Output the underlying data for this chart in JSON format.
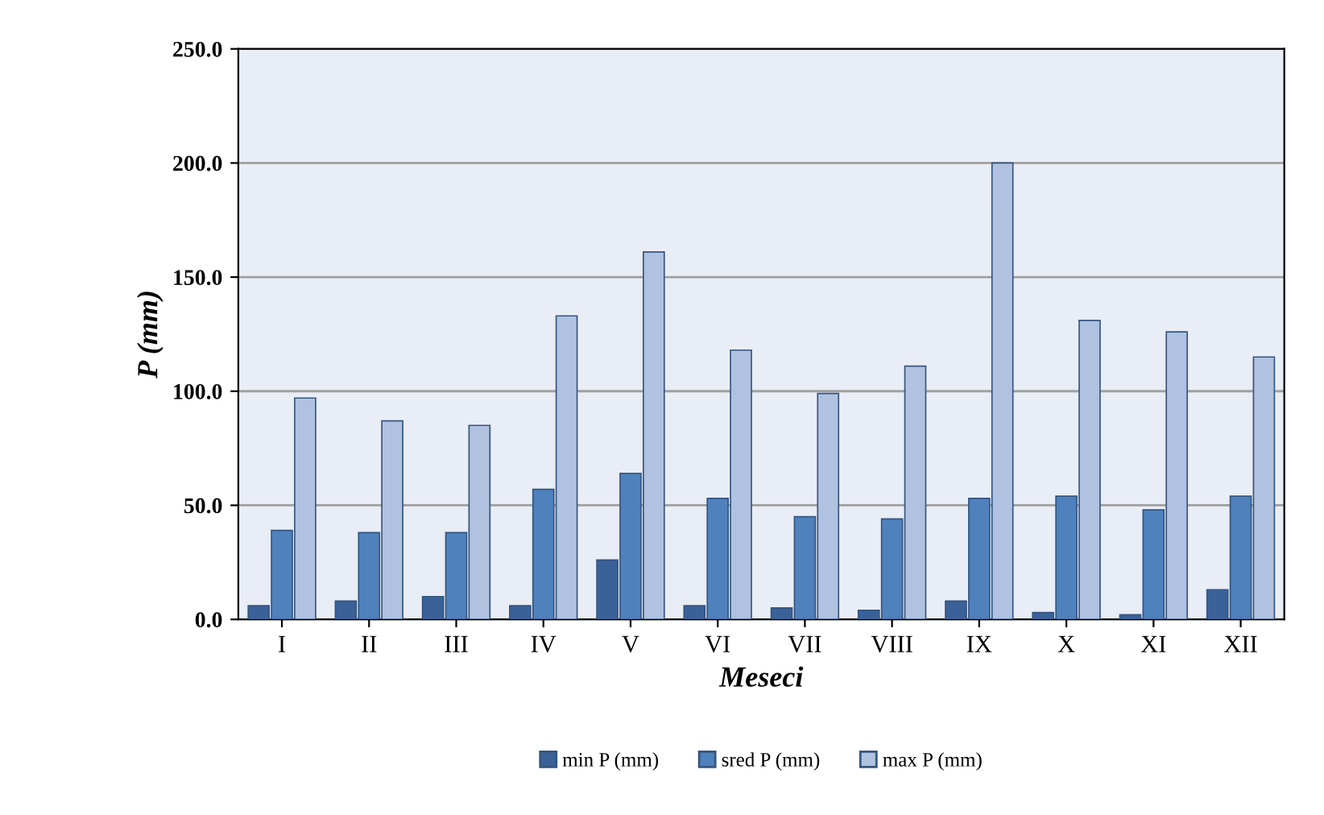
{
  "chart_data": {
    "type": "bar",
    "xlabel": "Meseci",
    "ylabel": "P (mm)",
    "categories": [
      "I",
      "II",
      "III",
      "IV",
      "V",
      "VI",
      "VII",
      "VIII",
      "IX",
      "X",
      "XI",
      "XII"
    ],
    "series": [
      {
        "name": "min P (mm)",
        "color": "#3a6299",
        "values": [
          6,
          8,
          10,
          6,
          26,
          6,
          5,
          4,
          8,
          3,
          2,
          13
        ]
      },
      {
        "name": "sred P (mm)",
        "color": "#4f81bd",
        "values": [
          39,
          38,
          38,
          57,
          64,
          53,
          45,
          44,
          53,
          54,
          48,
          54
        ]
      },
      {
        "name": "max P (mm)",
        "color": "#b0c2e0",
        "values": [
          97,
          87,
          85,
          133,
          161,
          118,
          99,
          111,
          200,
          131,
          126,
          115
        ]
      }
    ],
    "ylim": [
      0,
      250
    ],
    "yticks": [
      {
        "value": 0,
        "label": "0.0"
      },
      {
        "value": 50,
        "label": "50.0"
      },
      {
        "value": 100,
        "label": "100.0"
      },
      {
        "value": 150,
        "label": "150.0"
      },
      {
        "value": 200,
        "label": "200.0"
      },
      {
        "value": 250,
        "label": "250.0"
      }
    ],
    "grid": "y",
    "legend": "bottom"
  }
}
